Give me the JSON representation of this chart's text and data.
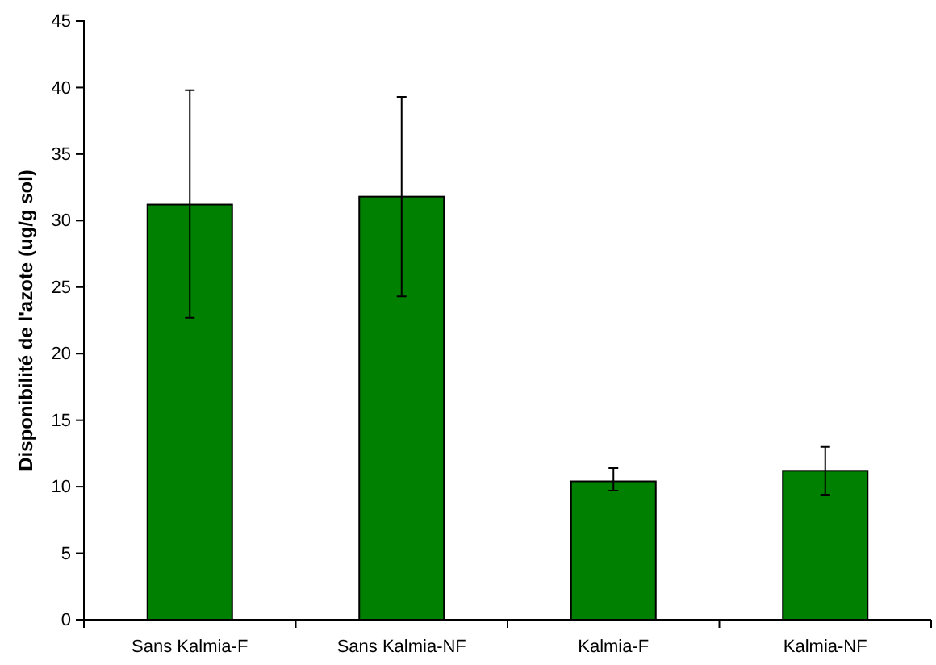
{
  "chart_data": {
    "type": "bar",
    "ylabel": "Disponibilité de l'azote (ug/g sol)",
    "categories": [
      "Sans Kalmia-F",
      "Sans Kalmia-NF",
      "Kalmia-F",
      "Kalmia-NF"
    ],
    "values": [
      31.2,
      31.8,
      10.4,
      11.2
    ],
    "errors": [
      [
        22.7,
        39.8
      ],
      [
        24.3,
        39.3
      ],
      [
        9.7,
        11.4
      ],
      [
        9.4,
        13.0
      ]
    ],
    "color": "#008000",
    "ylim": [
      0,
      45
    ],
    "yticks": [
      0,
      5,
      10,
      15,
      20,
      25,
      30,
      35,
      40,
      45
    ],
    "grid": false
  }
}
